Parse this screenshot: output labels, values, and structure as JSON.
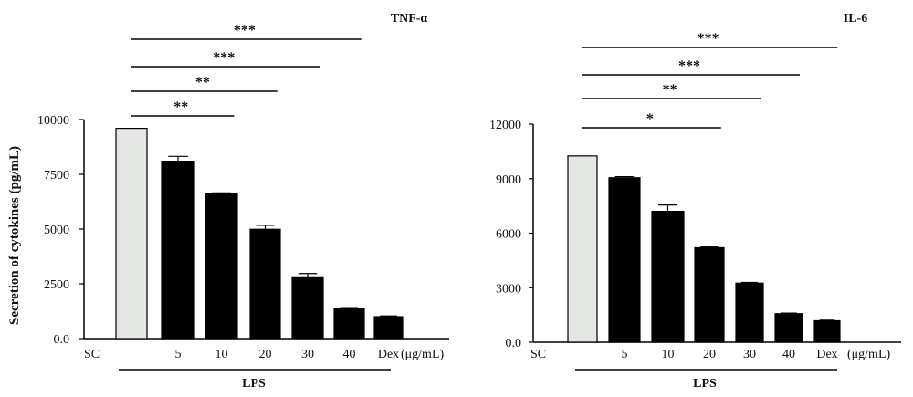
{
  "chart_data": [
    {
      "type": "bar",
      "title": "TNF-α",
      "ylabel": "Secretion of cytokines (pg/mL)",
      "xlabel": "",
      "unit": "(μg/mL)",
      "group_label": "LPS",
      "control_label": "SC",
      "categories": [
        "",
        "5",
        "10",
        "20",
        "30",
        "40",
        "Dex"
      ],
      "values": [
        9600,
        8100,
        6620,
        4990,
        2820,
        1380,
        1000
      ],
      "errors": [
        0,
        220,
        30,
        180,
        150,
        30,
        30
      ],
      "ylim": [
        0,
        10000
      ],
      "yticks": [
        "0.0",
        "2500",
        "5000",
        "7500",
        "10000"
      ],
      "ytick_values": [
        0,
        2500,
        5000,
        7500,
        10000
      ],
      "bar_colors": [
        "#e3e6e3",
        "#000000",
        "#000000",
        "#000000",
        "#000000",
        "#000000",
        "#000000"
      ],
      "significance": [
        {
          "label": "***",
          "from": 0,
          "to": 5
        },
        {
          "label": "***",
          "from": 0,
          "to": 4
        },
        {
          "label": "**",
          "from": 0,
          "to": 3
        },
        {
          "label": "**",
          "from": 0,
          "to": 2
        }
      ]
    },
    {
      "type": "bar",
      "title": "IL-6",
      "ylabel": "",
      "xlabel": "",
      "unit": "(μg/mL)",
      "group_label": "LPS",
      "control_label": "SC",
      "categories": [
        "",
        "5",
        "10",
        "20",
        "30",
        "40",
        "Dex"
      ],
      "values": [
        10250,
        9050,
        7200,
        5200,
        3250,
        1570,
        1180
      ],
      "errors": [
        0,
        60,
        350,
        60,
        40,
        30,
        30
      ],
      "ylim": [
        0,
        12000
      ],
      "yticks": [
        "0.0",
        "3000",
        "6000",
        "9000",
        "12000"
      ],
      "ytick_values": [
        0,
        3000,
        6000,
        9000,
        12000
      ],
      "bar_colors": [
        "#e3e6e3",
        "#000000",
        "#000000",
        "#000000",
        "#000000",
        "#000000",
        "#000000"
      ],
      "significance": [
        {
          "label": "***",
          "from": 0,
          "to": 6
        },
        {
          "label": "***",
          "from": 0,
          "to": 5
        },
        {
          "label": "**",
          "from": 0,
          "to": 4
        },
        {
          "label": "*",
          "from": 0,
          "to": 3
        }
      ]
    }
  ]
}
